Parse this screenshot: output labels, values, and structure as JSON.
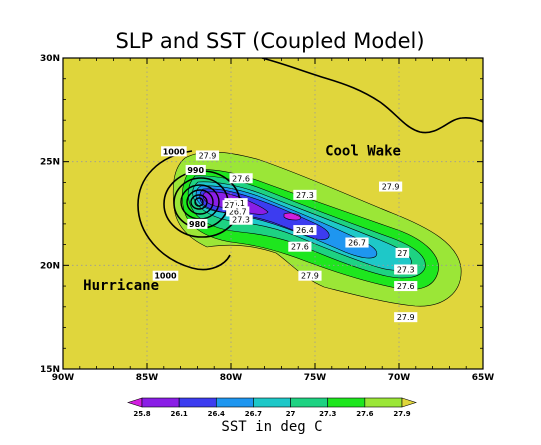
{
  "chart_data": {
    "type": "contour map",
    "title": "SLP and SST (Coupled Model)",
    "projection": "lon-lat",
    "xlim": [
      -90,
      -65
    ],
    "ylim": [
      15,
      30
    ],
    "x_ticks": [
      -90,
      -85,
      -80,
      -75,
      -70,
      -65
    ],
    "x_tick_labels": [
      "90W",
      "85W",
      "80W",
      "75W",
      "70W",
      "65W"
    ],
    "y_ticks": [
      15,
      20,
      25,
      30
    ],
    "y_tick_labels": [
      "15N",
      "20N",
      "25N",
      "30N"
    ],
    "background_color": "#e0d63c",
    "annotations": [
      {
        "text": "Cool Wake",
        "lon": -74.4,
        "lat": 25.3
      },
      {
        "text": "Hurricane",
        "lon": -88.8,
        "lat": 18.8
      }
    ],
    "sst": {
      "units_label": "SST in deg C",
      "levels": [
        25.8,
        26.1,
        26.4,
        26.7,
        27,
        27.3,
        27.6,
        27.9
      ],
      "level_labels": [
        "25.8",
        "26.1",
        "26.4",
        "26.7",
        "27",
        "27.3",
        "27.6",
        "27.9"
      ],
      "colors": [
        "#d21ee0",
        "#8a1ee6",
        "#3c3cf0",
        "#1e96f0",
        "#1ec8c8",
        "#1ed282",
        "#1ee61e",
        "#9be637",
        "#e0d63c"
      ],
      "contour_labels": [
        {
          "text": "27.9",
          "lon": -81.4,
          "lat": 25.3
        },
        {
          "text": "27.6",
          "lon": -79.4,
          "lat": 24.2
        },
        {
          "text": "26.1",
          "lon": -79.7,
          "lat": 23.0
        },
        {
          "text": "26.7",
          "lon": -79.6,
          "lat": 22.6
        },
        {
          "text": "27.3",
          "lon": -79.4,
          "lat": 22.2
        },
        {
          "text": "27",
          "lon": -80.1,
          "lat": 22.9
        },
        {
          "text": "27.3",
          "lon": -75.6,
          "lat": 23.4
        },
        {
          "text": "26.4",
          "lon": -75.6,
          "lat": 21.7
        },
        {
          "text": "26.7",
          "lon": -72.5,
          "lat": 21.1
        },
        {
          "text": "27",
          "lon": -69.8,
          "lat": 20.6
        },
        {
          "text": "27.9",
          "lon": -70.5,
          "lat": 23.8
        },
        {
          "text": "27.6",
          "lon": -75.9,
          "lat": 20.9
        },
        {
          "text": "27.3",
          "lon": -69.6,
          "lat": 19.8
        },
        {
          "text": "27.9",
          "lon": -75.3,
          "lat": 19.5
        },
        {
          "text": "27.6",
          "lon": -69.6,
          "lat": 19.0
        },
        {
          "text": "27.9",
          "lon": -69.6,
          "lat": 17.5
        }
      ]
    },
    "slp": {
      "center": {
        "lon": -82.1,
        "lat": 23.2
      },
      "contour_labels": [
        {
          "text": "1000",
          "lon": -83.4,
          "lat": 25.5
        },
        {
          "text": "990",
          "lon": -82.1,
          "lat": 24.6
        },
        {
          "text": "980",
          "lon": -82.0,
          "lat": 22.0
        },
        {
          "text": "1000",
          "lon": -83.9,
          "lat": 19.5
        }
      ]
    }
  }
}
